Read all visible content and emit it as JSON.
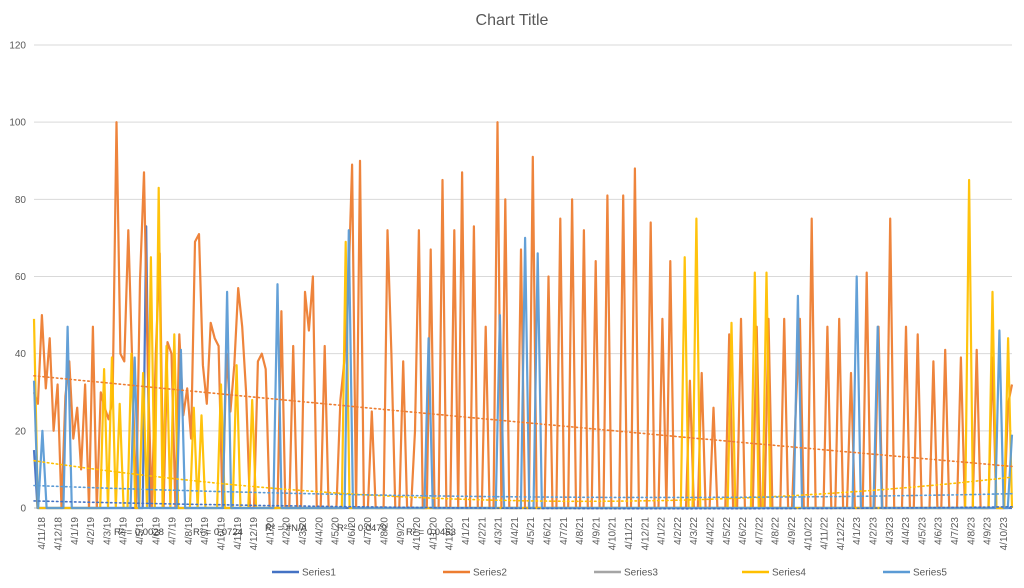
{
  "chart_data": {
    "type": "line",
    "title": "Chart Title",
    "xlabel": "",
    "ylabel": "",
    "ylim": [
      0,
      120
    ],
    "y_ticks": [
      0,
      20,
      40,
      60,
      80,
      100,
      120
    ],
    "grid": true,
    "legend_position": "bottom",
    "x_tick_labels": [
      "4/11/18",
      "4/12/18",
      "4/1/19",
      "4/2/19",
      "4/3/19",
      "4/4/19",
      "4/5/19",
      "4/6/19",
      "4/7/19",
      "4/8/19",
      "4/9/19",
      "4/10/19",
      "4/11/19",
      "4/12/19",
      "4/1/20",
      "4/2/20",
      "4/3/20",
      "4/4/20",
      "4/5/20",
      "4/6/20",
      "4/7/20",
      "4/8/20",
      "4/9/20",
      "4/10/20",
      "4/11/20",
      "4/12/20",
      "4/1/21",
      "4/2/21",
      "4/3/21",
      "4/4/21",
      "4/5/21",
      "4/6/21",
      "4/7/21",
      "4/8/21",
      "4/9/21",
      "4/10/21",
      "4/11/21",
      "4/12/21",
      "4/1/22",
      "4/2/22",
      "4/3/22",
      "4/4/22",
      "4/5/22",
      "4/6/22",
      "4/7/22",
      "4/8/22",
      "4/9/22",
      "4/10/22",
      "4/11/22",
      "4/12/22",
      "4/1/23",
      "4/2/23",
      "4/3/23",
      "4/4/23",
      "4/5/23",
      "4/6/23",
      "4/7/23",
      "4/8/23",
      "4/9/23",
      "4/10/23"
    ],
    "series": [
      {
        "name": "Series1",
        "color": "#4472C4",
        "trend_r2": "R² = 0,0028",
        "values": [
          15,
          0,
          0,
          0,
          0,
          0,
          0,
          0,
          0,
          0,
          0,
          0,
          0,
          0,
          0,
          0,
          0,
          0,
          0,
          0,
          0,
          0,
          0,
          0,
          0,
          0,
          0,
          0,
          0,
          0,
          0,
          0,
          73,
          0,
          0,
          0,
          0,
          0,
          0,
          0,
          0,
          0,
          0,
          0,
          0,
          0,
          0,
          0,
          0,
          0,
          0,
          0,
          0,
          0,
          0,
          0,
          0,
          0,
          0,
          0,
          0,
          0,
          0,
          0,
          0,
          0,
          0,
          0,
          0,
          0,
          0,
          0,
          0,
          0,
          0,
          0,
          0,
          0,
          0,
          0,
          0,
          0,
          0,
          0,
          0,
          0,
          0,
          0,
          0,
          0,
          0,
          0,
          0,
          0,
          0,
          0,
          0,
          0,
          0,
          0,
          0,
          0,
          0,
          0,
          0,
          0,
          0,
          0,
          0,
          0,
          0,
          0,
          0,
          0,
          0,
          0,
          0,
          0,
          0,
          0,
          0,
          0,
          0,
          0,
          0,
          0,
          0,
          0,
          0,
          0,
          0,
          0,
          0,
          0,
          0,
          0,
          0,
          0,
          0,
          0,
          0,
          0,
          0,
          0,
          0,
          0,
          0,
          0,
          0,
          0,
          0,
          0,
          0,
          0,
          0,
          0,
          0,
          0,
          0,
          0,
          0,
          0,
          0,
          0,
          0,
          0,
          0,
          0,
          0,
          0,
          0,
          0,
          0,
          0,
          0,
          0,
          0,
          0,
          0,
          0,
          0,
          0,
          0,
          0,
          0,
          0,
          0,
          0,
          0,
          0,
          0,
          0,
          0,
          0,
          0,
          0,
          0,
          0,
          0,
          0,
          0,
          0,
          0,
          0,
          0,
          0,
          0,
          0,
          0,
          0,
          0,
          0,
          0,
          0,
          0,
          0,
          0,
          0,
          0,
          0,
          0,
          0,
          0,
          0,
          0,
          0,
          0,
          0,
          0,
          0,
          0,
          0,
          0,
          0,
          0,
          0,
          0,
          0,
          0,
          0,
          0,
          0,
          0,
          0,
          0,
          0,
          0,
          0,
          0,
          0,
          0,
          0,
          0,
          0,
          0,
          0,
          0,
          0,
          0,
          0,
          0,
          0,
          0,
          0,
          0,
          0,
          0,
          0,
          0,
          0,
          0,
          0,
          0,
          0,
          0,
          0,
          0,
          0,
          0,
          0
        ]
      },
      {
        "name": "Series2",
        "color": "#ED7D31",
        "trend_r2": "R² = 0,0724",
        "values": [
          30,
          27,
          50,
          31,
          44,
          20,
          32,
          0,
          29,
          38,
          18,
          26,
          10,
          32,
          0,
          47,
          0,
          30,
          26,
          23,
          28,
          100,
          40,
          38,
          72,
          38,
          0,
          59,
          87,
          35,
          0,
          40,
          66,
          0,
          43,
          40,
          0,
          45,
          24,
          31,
          18,
          69,
          71,
          37,
          27,
          48,
          44,
          42,
          0,
          40,
          25,
          37,
          57,
          47,
          30,
          0,
          0,
          38,
          40,
          36,
          0,
          0,
          0,
          51,
          0,
          0,
          42,
          0,
          0,
          56,
          46,
          60,
          0,
          0,
          42,
          0,
          0,
          0,
          28,
          38,
          56,
          89,
          0,
          90,
          0,
          0,
          25,
          0,
          0,
          0,
          72,
          40,
          0,
          0,
          38,
          0,
          0,
          20,
          72,
          0,
          0,
          67,
          0,
          0,
          85,
          0,
          0,
          72,
          0,
          87,
          0,
          0,
          73,
          0,
          0,
          47,
          0,
          0,
          100,
          0,
          80,
          0,
          0,
          0,
          67,
          0,
          0,
          91,
          0,
          0,
          0,
          60,
          0,
          0,
          75,
          0,
          0,
          80,
          0,
          0,
          72,
          0,
          0,
          64,
          0,
          0,
          81,
          0,
          0,
          0,
          81,
          0,
          0,
          88,
          0,
          0,
          0,
          74,
          0,
          0,
          49,
          0,
          64,
          0,
          0,
          0,
          0,
          33,
          0,
          0,
          35,
          0,
          0,
          26,
          0,
          0,
          0,
          45,
          0,
          0,
          49,
          0,
          0,
          0,
          47,
          0,
          0,
          49,
          0,
          0,
          0,
          49,
          0,
          0,
          27,
          49,
          0,
          0,
          75,
          0,
          0,
          0,
          47,
          0,
          0,
          49,
          0,
          0,
          35,
          0,
          0,
          0,
          61,
          0,
          0,
          47,
          0,
          0,
          75,
          0,
          0,
          0,
          47,
          0,
          0,
          45,
          0,
          0,
          0,
          38,
          0,
          0,
          41,
          0,
          0,
          0,
          39,
          0,
          0,
          0,
          41,
          0,
          0,
          0,
          39,
          0,
          0,
          0,
          27,
          32
        ]
      },
      {
        "name": "Series3",
        "color": "#A5A5A5",
        "trend_r2": "R² = #N/A",
        "values": []
      },
      {
        "name": "Series4",
        "color": "#FFC000",
        "trend_r2": "R² = 0,0479",
        "values": [
          49,
          0,
          0,
          0,
          0,
          0,
          0,
          0,
          0,
          0,
          0,
          0,
          0,
          0,
          0,
          0,
          0,
          0,
          36,
          0,
          39,
          0,
          27,
          0,
          0,
          40,
          0,
          0,
          35,
          0,
          65,
          0,
          83,
          0,
          42,
          0,
          45,
          0,
          0,
          0,
          0,
          26,
          0,
          24,
          0,
          0,
          0,
          0,
          32,
          0,
          0,
          0,
          37,
          0,
          0,
          0,
          28,
          0,
          0,
          0,
          0,
          0,
          0,
          0,
          0,
          0,
          0,
          0,
          0,
          0,
          0,
          0,
          0,
          0,
          0,
          0,
          0,
          0,
          0,
          0,
          69,
          0,
          0,
          0,
          0,
          0,
          0,
          0,
          0,
          0,
          0,
          0,
          0,
          0,
          0,
          0,
          0,
          0,
          0,
          0,
          0,
          0,
          0,
          0,
          0,
          0,
          0,
          0,
          0,
          0,
          0,
          0,
          0,
          0,
          0,
          0,
          0,
          0,
          0,
          0,
          0,
          0,
          0,
          0,
          0,
          0,
          0,
          0,
          0,
          0,
          0,
          0,
          0,
          0,
          0,
          0,
          0,
          0,
          0,
          0,
          0,
          0,
          0,
          0,
          0,
          0,
          0,
          0,
          0,
          0,
          0,
          0,
          0,
          0,
          0,
          0,
          0,
          0,
          0,
          0,
          0,
          0,
          0,
          0,
          0,
          0,
          0,
          65,
          0,
          0,
          75,
          0,
          0,
          0,
          0,
          0,
          0,
          0,
          0,
          48,
          0,
          0,
          0,
          0,
          0,
          61,
          0,
          0,
          61,
          0,
          0,
          0,
          0,
          0,
          0,
          0,
          0,
          0,
          0,
          0,
          0,
          0,
          0,
          0,
          0,
          0,
          0,
          0,
          0,
          0,
          0,
          0,
          0,
          0,
          0,
          0,
          0,
          0,
          0,
          0,
          0,
          0,
          0,
          0,
          0,
          0,
          0,
          0,
          0,
          0,
          0,
          0,
          0,
          0,
          0,
          0,
          0,
          0,
          0,
          0,
          85,
          0,
          0,
          0,
          0,
          0,
          56,
          0,
          0,
          0,
          44,
          0
        ]
      },
      {
        "name": "Series5",
        "color": "#5B9BD5",
        "trend_r2": "R² = 0,0453",
        "values": [
          33,
          0,
          20,
          0,
          0,
          0,
          0,
          0,
          47,
          0,
          0,
          0,
          0,
          0,
          0,
          0,
          0,
          0,
          0,
          0,
          0,
          0,
          0,
          0,
          39,
          0,
          0,
          0,
          0,
          0,
          0,
          0,
          0,
          0,
          0,
          41,
          0,
          0,
          0,
          0,
          0,
          0,
          0,
          0,
          0,
          0,
          56,
          0,
          0,
          0,
          0,
          0,
          0,
          0,
          0,
          0,
          0,
          0,
          58,
          0,
          0,
          0,
          0,
          0,
          0,
          0,
          0,
          0,
          0,
          0,
          0,
          0,
          0,
          0,
          0,
          72,
          0,
          0,
          0,
          0,
          0,
          0,
          0,
          0,
          0,
          0,
          0,
          0,
          0,
          0,
          0,
          0,
          0,
          0,
          44,
          0,
          0,
          0,
          0,
          0,
          0,
          0,
          0,
          0,
          0,
          0,
          0,
          0,
          0,
          0,
          0,
          50,
          0,
          0,
          0,
          0,
          0,
          70,
          0,
          0,
          66,
          0,
          0,
          0,
          0,
          0,
          0,
          0,
          0,
          0,
          0,
          0,
          0,
          0,
          0,
          0,
          0,
          0,
          0,
          0,
          0,
          0,
          0,
          0,
          0,
          0,
          0,
          0,
          0,
          0,
          0,
          0,
          0,
          0,
          0,
          0,
          0,
          0,
          0,
          0,
          0,
          0,
          0,
          0,
          0,
          0,
          0,
          0,
          0,
          0,
          0,
          0,
          0,
          0,
          0,
          0,
          0,
          0,
          0,
          0,
          0,
          0,
          55,
          0,
          0,
          0,
          0,
          0,
          0,
          0,
          0,
          0,
          0,
          0,
          0,
          0,
          60,
          0,
          0,
          0,
          0,
          47,
          0,
          0,
          0,
          0,
          0,
          0,
          0,
          0,
          0,
          0,
          0,
          0,
          0,
          0,
          0,
          0,
          0,
          0,
          0,
          0,
          0,
          0,
          0,
          0,
          0,
          0,
          0,
          0,
          46,
          0,
          0,
          19
        ]
      }
    ]
  }
}
